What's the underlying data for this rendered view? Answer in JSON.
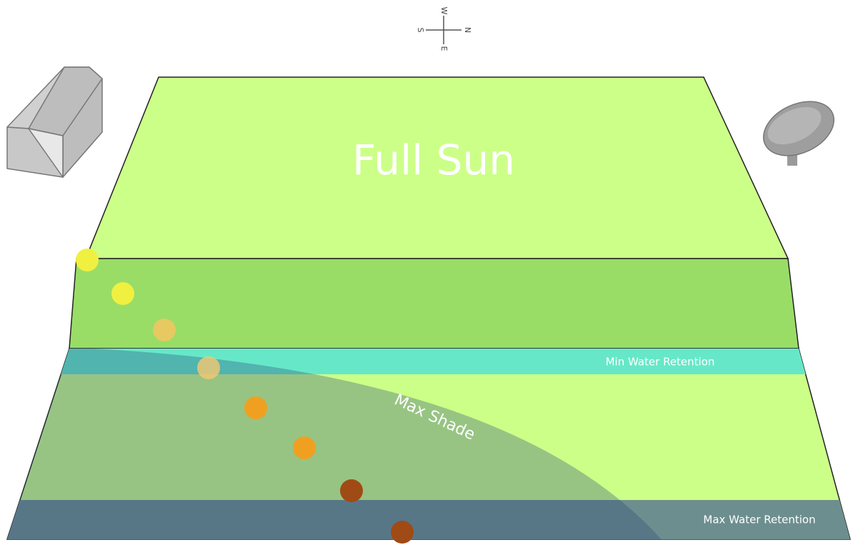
{
  "compass": {
    "west": "W",
    "south": "S",
    "north": "N",
    "east": "E"
  },
  "zones": {
    "full_sun": "Full Sun",
    "min_water": "Min Water Retention",
    "max_shade": "Max Shade",
    "max_water": "Max Water Retention"
  }
}
